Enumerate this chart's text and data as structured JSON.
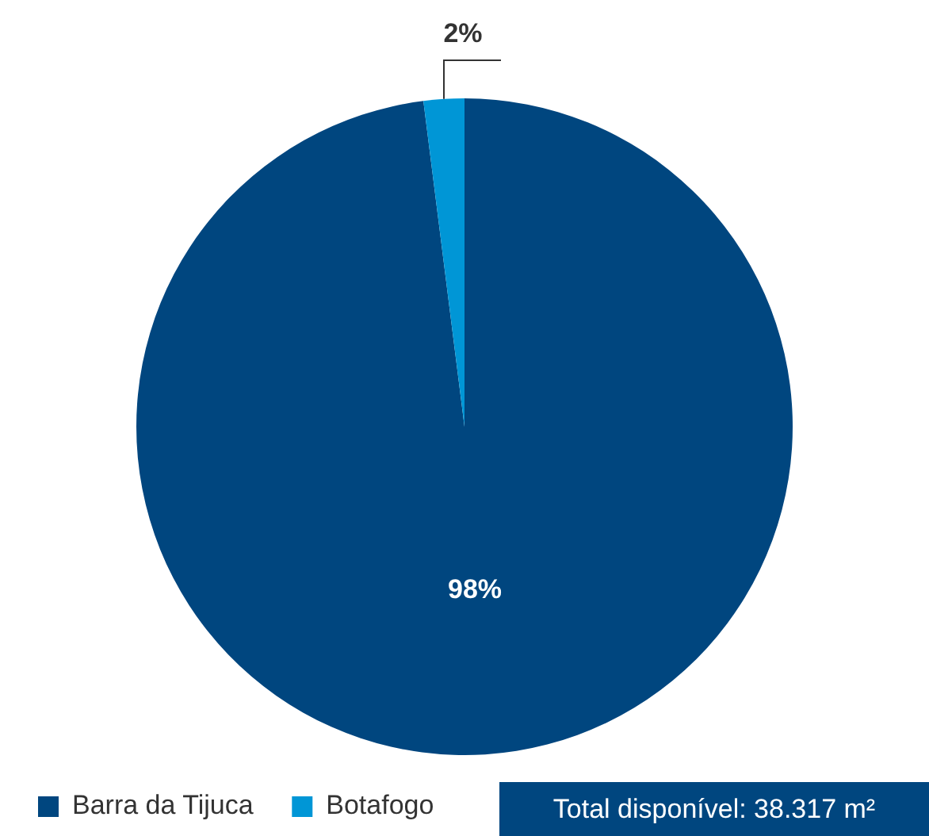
{
  "chart_data": {
    "type": "pie",
    "categories": [
      "Barra da Tijuca",
      "Botafogo"
    ],
    "values": [
      98,
      2
    ],
    "colors": [
      "#00467f",
      "#0096d6"
    ],
    "value_labels": [
      "98%",
      "2%"
    ],
    "legend": "bottom left",
    "annotations": [
      "Total disponível: 38.317 m²"
    ]
  }
}
